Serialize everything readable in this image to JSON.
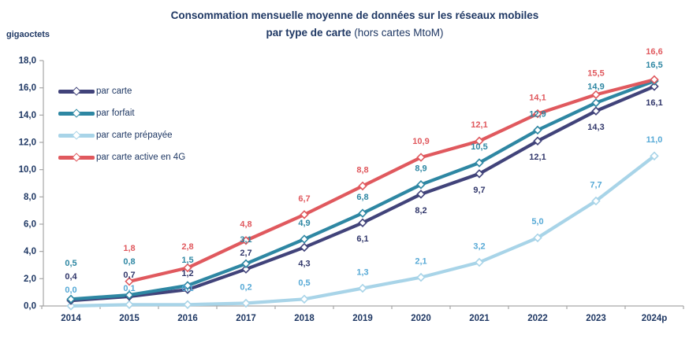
{
  "header": {
    "unit_label": "gigaoctets"
  },
  "chart_data": {
    "type": "line",
    "title_line1": "Consommation mensuelle moyenne de données sur les réseaux mobiles",
    "title_line2_bold": "par type de carte",
    "title_line2_regular": " (hors cartes MtoM)",
    "y_unit": "gigaoctets",
    "categories": [
      "2014",
      "2015",
      "2016",
      "2017",
      "2018",
      "2019",
      "2020",
      "2021",
      "2022",
      "2023",
      "2024p"
    ],
    "y_ticks": [
      "0,0",
      "2,0",
      "4,0",
      "6,0",
      "8,0",
      "10,0",
      "12,0",
      "14,0",
      "16,0",
      "18,0"
    ],
    "y_tick_step": 2,
    "ylim": [
      0,
      18
    ],
    "grid": false,
    "legend_position": "top-left-inside",
    "axis_color": "#A6A6A6",
    "text_color": "#1F3864",
    "background": "#FFFFFF",
    "z_order": [
      2,
      0,
      1,
      3
    ],
    "series": [
      {
        "name": "par carte",
        "color": "#41437A",
        "label_color": "#31376B",
        "values": [
          0.4,
          0.7,
          1.2,
          2.7,
          4.3,
          6.1,
          8.2,
          9.7,
          12.1,
          14.3,
          16.1
        ],
        "label_below_from_index": 4
      },
      {
        "name": "par forfait",
        "color": "#2E87A3",
        "label_color": "#2E87A3",
        "values": [
          0.5,
          0.8,
          1.5,
          3.1,
          4.9,
          6.8,
          8.9,
          10.5,
          12.9,
          14.9,
          16.5
        ]
      },
      {
        "name": "par carte prépayée",
        "color": "#A8D4E8",
        "label_color": "#56A9D6",
        "values": [
          0.0,
          0.1,
          0.1,
          0.2,
          0.5,
          1.3,
          2.1,
          3.2,
          5.0,
          7.7,
          11.0
        ]
      },
      {
        "name": "par carte active en 4G",
        "color": "#E0595E",
        "label_color": "#E0595E",
        "values": [
          null,
          1.8,
          2.8,
          4.8,
          6.7,
          8.8,
          10.9,
          12.1,
          14.1,
          15.5,
          16.6
        ]
      }
    ]
  }
}
